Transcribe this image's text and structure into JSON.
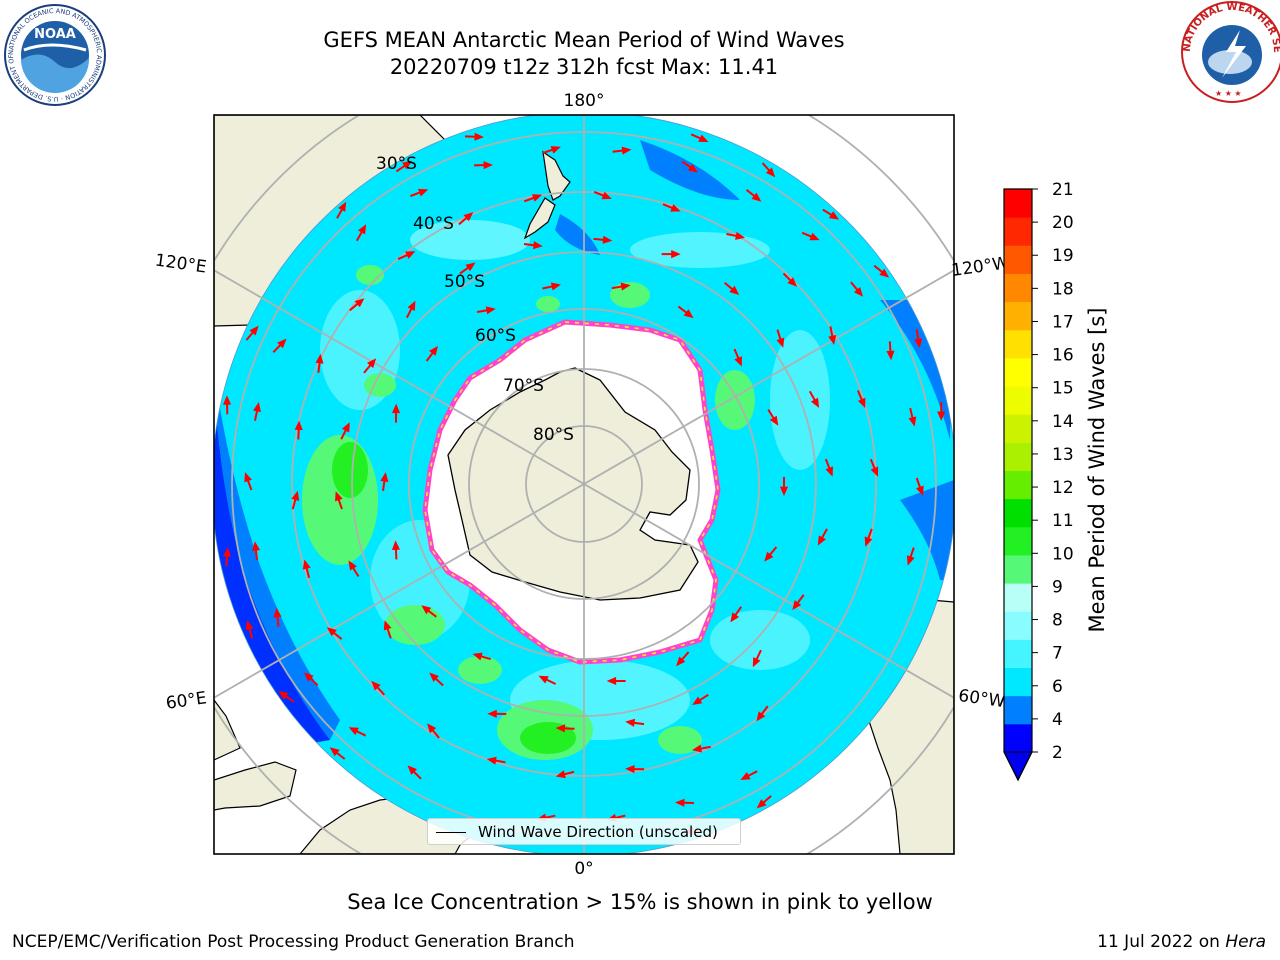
{
  "title": {
    "line1": "GEFS MEAN Antarctic Mean Period of Wind Waves",
    "line2": "20220709 t12z 312h fcst   Max: 11.41"
  },
  "map": {
    "projection": "south-polar-stereographic",
    "longitude_labels": {
      "top": "180°",
      "bottom": "0°",
      "upper_left": "120°E",
      "upper_right": "120°W",
      "lower_left": "60°E",
      "lower_right": "60°W"
    },
    "latitude_labels": [
      "30°S",
      "40°S",
      "50°S",
      "60°S",
      "70°S",
      "80°S"
    ],
    "legend_label": "Wind Wave Direction (unscaled)",
    "colors": {
      "land": "#eeeedb",
      "ice_edge": "#ff44cc",
      "arrow": "#ff0000",
      "gridline": "#b0b0b0"
    }
  },
  "colorbar": {
    "label": "Mean Period of Wind Waves [s]",
    "ticks": [
      "2",
      "4",
      "6",
      "7",
      "8",
      "9",
      "10",
      "11",
      "12",
      "13",
      "14",
      "15",
      "16",
      "17",
      "18",
      "19",
      "20",
      "21"
    ],
    "colors": [
      "#0000ff",
      "#0080ff",
      "#00e8ff",
      "#44f4ff",
      "#88fcff",
      "#b8fff8",
      "#55f977",
      "#22f022",
      "#00e000",
      "#66ee00",
      "#aaf000",
      "#ccf200",
      "#eefc00",
      "#ffff00",
      "#ffe000",
      "#ffb000",
      "#ff8800",
      "#ff5800",
      "#ff2800",
      "#ff0000"
    ],
    "extend_color": "#0000ee"
  },
  "caption": "Sea Ice Concentration > 15% is shown in pink to yellow",
  "footer": {
    "left": "NCEP/EMC/Verification Post Processing Product Generation Branch",
    "right_date": "11 Jul 2022 on ",
    "right_host": "Hera"
  },
  "logos": {
    "noaa_text": "NOAA",
    "noaa_ring": "NATIONAL OCEANIC AND ATMOSPHERIC ADMINISTRATION · U.S. DEPARTMENT OF COMMERCE",
    "nws_ring": "NATIONAL WEATHER SERVICE"
  }
}
